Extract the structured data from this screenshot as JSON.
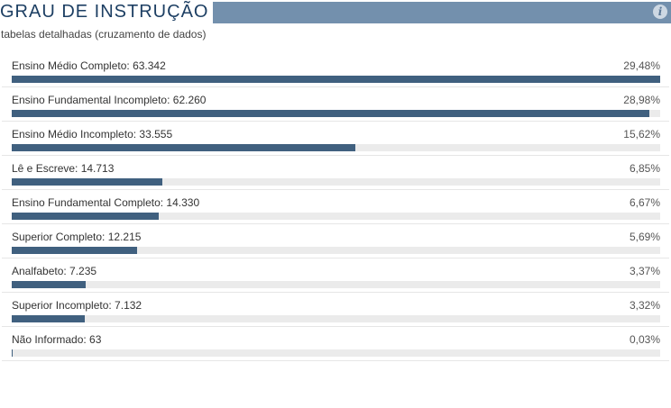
{
  "header": {
    "title": "GRAU DE INSTRUÇÃO",
    "subtitle": "tabelas detalhadas (cruzamento de dados)",
    "info_icon": "info-icon"
  },
  "colors": {
    "header_band": "#7390ad",
    "title_text": "#1d3f63",
    "bar_fill": "#40607f",
    "bar_track": "#ebebeb"
  },
  "chart_data": {
    "type": "bar",
    "orientation": "horizontal",
    "title": "GRAU DE INSTRUÇÃO",
    "xlim": [
      0,
      29.48
    ],
    "rows": [
      {
        "label": "Ensino Médio Completo: 63.342",
        "category": "Ensino Médio Completo",
        "count": 63342,
        "percent": 29.48,
        "pct_text": "29,48%"
      },
      {
        "label": "Ensino Fundamental Incompleto: 62.260",
        "category": "Ensino Fundamental Incompleto",
        "count": 62260,
        "percent": 28.98,
        "pct_text": "28,98%"
      },
      {
        "label": "Ensino Médio Incompleto: 33.555",
        "category": "Ensino Médio Incompleto",
        "count": 33555,
        "percent": 15.62,
        "pct_text": "15,62%"
      },
      {
        "label": "Lê e Escreve: 14.713",
        "category": "Lê e Escreve",
        "count": 14713,
        "percent": 6.85,
        "pct_text": "6,85%"
      },
      {
        "label": "Ensino Fundamental Completo: 14.330",
        "category": "Ensino Fundamental Completo",
        "count": 14330,
        "percent": 6.67,
        "pct_text": "6,67%"
      },
      {
        "label": "Superior Completo: 12.215",
        "category": "Superior Completo",
        "count": 12215,
        "percent": 5.69,
        "pct_text": "5,69%"
      },
      {
        "label": "Analfabeto: 7.235",
        "category": "Analfabeto",
        "count": 7235,
        "percent": 3.37,
        "pct_text": "3,37%"
      },
      {
        "label": "Superior Incompleto: 7.132",
        "category": "Superior Incompleto",
        "count": 7132,
        "percent": 3.32,
        "pct_text": "3,32%"
      },
      {
        "label": "Não Informado: 63",
        "category": "Não Informado",
        "count": 63,
        "percent": 0.03,
        "pct_text": "0,03%"
      }
    ]
  }
}
